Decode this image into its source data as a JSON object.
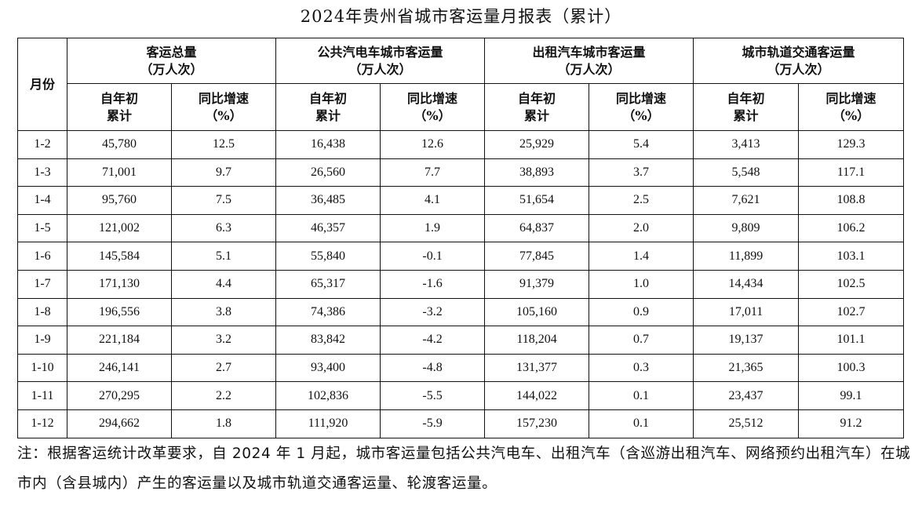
{
  "title": "2024年贵州省城市客运量月报表（累计）",
  "table": {
    "month_header": "月份",
    "groups": [
      {
        "line1": "客运总量",
        "line2": "（万人次）"
      },
      {
        "line1": "公共汽电车城市客运量",
        "line2": "（万人次）"
      },
      {
        "line1": "出租汽车城市客运量",
        "line2": "（万人次）"
      },
      {
        "line1": "城市轨道交通客运量",
        "line2": "（万人次）"
      }
    ],
    "sub": {
      "cum_line1": "自年初",
      "cum_line2": "累计",
      "yoy_line1": "同比增速",
      "yoy_line2": "（%）"
    },
    "rows": [
      {
        "month": "1-2",
        "total": "45,780",
        "total_yoy": "12.5",
        "bus": "16,438",
        "bus_yoy": "12.6",
        "taxi": "25,929",
        "taxi_yoy": "5.4",
        "rail": "3,413",
        "rail_yoy": "129.3"
      },
      {
        "month": "1-3",
        "total": "71,001",
        "total_yoy": "9.7",
        "bus": "26,560",
        "bus_yoy": "7.7",
        "taxi": "38,893",
        "taxi_yoy": "3.7",
        "rail": "5,548",
        "rail_yoy": "117.1"
      },
      {
        "month": "1-4",
        "total": "95,760",
        "total_yoy": "7.5",
        "bus": "36,485",
        "bus_yoy": "4.1",
        "taxi": "51,654",
        "taxi_yoy": "2.5",
        "rail": "7,621",
        "rail_yoy": "108.8"
      },
      {
        "month": "1-5",
        "total": "121,002",
        "total_yoy": "6.3",
        "bus": "46,357",
        "bus_yoy": "1.9",
        "taxi": "64,837",
        "taxi_yoy": "2.0",
        "rail": "9,809",
        "rail_yoy": "106.2"
      },
      {
        "month": "1-6",
        "total": "145,584",
        "total_yoy": "5.1",
        "bus": "55,840",
        "bus_yoy": "-0.1",
        "taxi": "77,845",
        "taxi_yoy": "1.4",
        "rail": "11,899",
        "rail_yoy": "103.1"
      },
      {
        "month": "1-7",
        "total": "171,130",
        "total_yoy": "4.4",
        "bus": "65,317",
        "bus_yoy": "-1.6",
        "taxi": "91,379",
        "taxi_yoy": "1.0",
        "rail": "14,434",
        "rail_yoy": "102.5"
      },
      {
        "month": "1-8",
        "total": "196,556",
        "total_yoy": "3.8",
        "bus": "74,386",
        "bus_yoy": "-3.2",
        "taxi": "105,160",
        "taxi_yoy": "0.9",
        "rail": "17,011",
        "rail_yoy": "102.7"
      },
      {
        "month": "1-9",
        "total": "221,184",
        "total_yoy": "3.2",
        "bus": "83,842",
        "bus_yoy": "-4.2",
        "taxi": "118,204",
        "taxi_yoy": "0.7",
        "rail": "19,137",
        "rail_yoy": "101.1"
      },
      {
        "month": "1-10",
        "total": "246,141",
        "total_yoy": "2.7",
        "bus": "93,400",
        "bus_yoy": "-4.8",
        "taxi": "131,377",
        "taxi_yoy": "0.3",
        "rail": "21,365",
        "rail_yoy": "100.3"
      },
      {
        "month": "1-11",
        "total": "270,295",
        "total_yoy": "2.2",
        "bus": "102,836",
        "bus_yoy": "-5.5",
        "taxi": "144,022",
        "taxi_yoy": "0.1",
        "rail": "23,437",
        "rail_yoy": "99.1"
      },
      {
        "month": "1-12",
        "total": "294,662",
        "total_yoy": "1.8",
        "bus": "111,920",
        "bus_yoy": "-5.9",
        "taxi": "157,230",
        "taxi_yoy": "0.1",
        "rail": "25,512",
        "rail_yoy": "91.2"
      }
    ]
  },
  "note": "注：根据客运统计改革要求，自 2024 年 1 月起，城市客运量包括公共汽电车、出租汽车（含巡游出租汽车、网络预约出租汽车）在城市内（含县城内）产生的客运量以及城市轨道交通客运量、轮渡客运量。"
}
